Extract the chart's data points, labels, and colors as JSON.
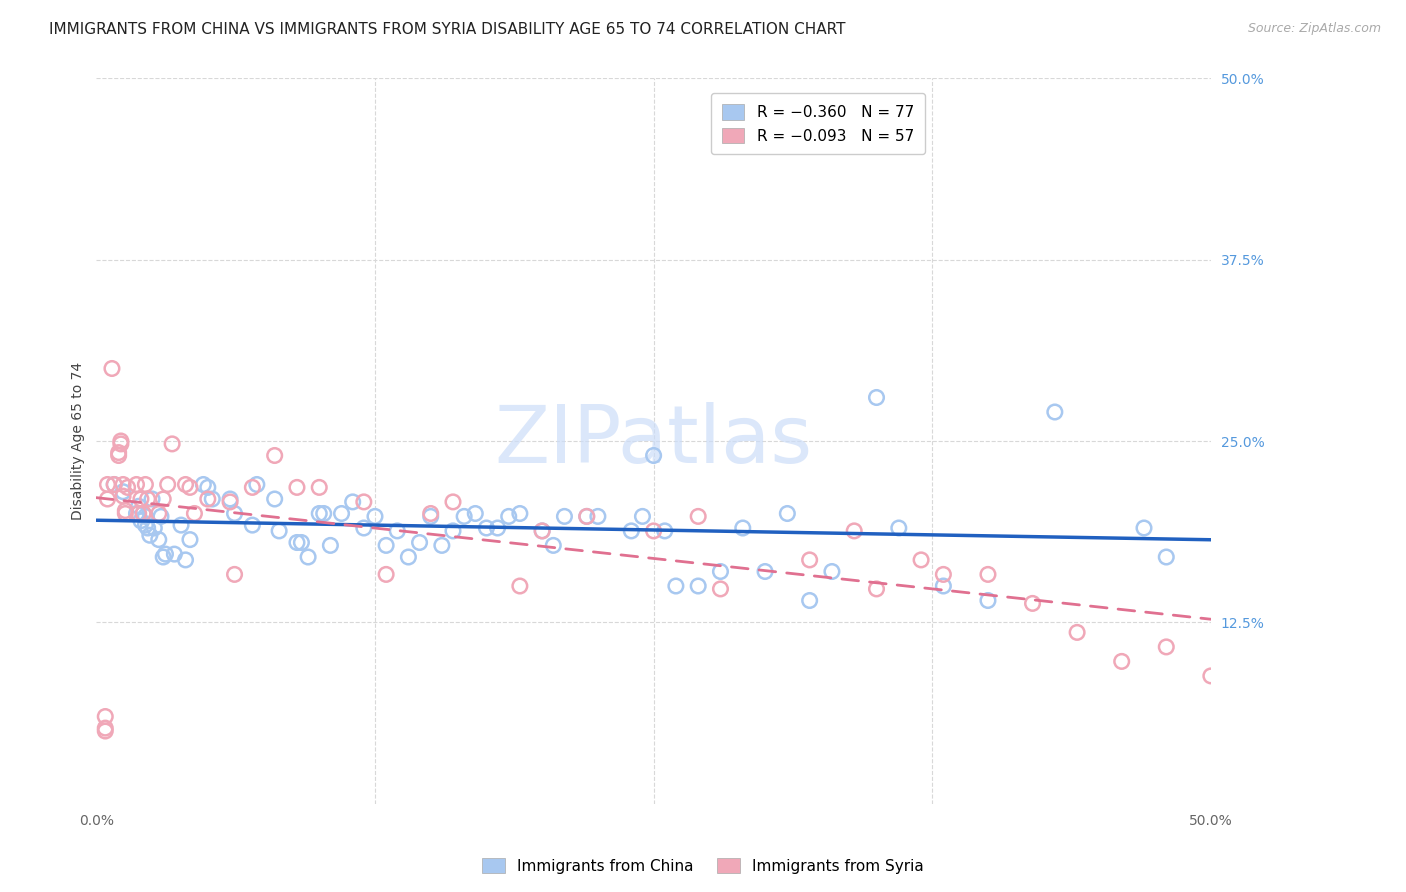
{
  "title": "IMMIGRANTS FROM CHINA VS IMMIGRANTS FROM SYRIA DISABILITY AGE 65 TO 74 CORRELATION CHART",
  "source": "Source: ZipAtlas.com",
  "ylabel": "Disability Age 65 to 74",
  "x_min": 0.0,
  "x_max": 0.5,
  "y_min": 0.0,
  "y_max": 0.5,
  "y_ticks_right": [
    0.5,
    0.375,
    0.25,
    0.125
  ],
  "y_tick_labels_right": [
    "50.0%",
    "37.5%",
    "25.0%",
    "12.5%"
  ],
  "legend_r_china": "R = −0.360",
  "legend_n_china": "N = 77",
  "legend_r_syria": "R = −0.093",
  "legend_n_syria": "N = 57",
  "color_china": "#a8c8f0",
  "color_syria": "#f0a8b8",
  "trendline_china_color": "#2060c0",
  "trendline_syria_color": "#e07090",
  "watermark_color": "#ccddf8",
  "background_color": "#ffffff",
  "grid_color": "#d8d8d8",
  "title_fontsize": 11,
  "axis_label_fontsize": 10,
  "tick_fontsize": 10,
  "legend_fontsize": 11,
  "china_x": [
    0.008,
    0.012,
    0.018,
    0.019,
    0.02,
    0.021,
    0.022,
    0.022,
    0.023,
    0.024,
    0.025,
    0.026,
    0.028,
    0.029,
    0.03,
    0.031,
    0.035,
    0.038,
    0.04,
    0.042,
    0.048,
    0.05,
    0.052,
    0.06,
    0.062,
    0.07,
    0.072,
    0.08,
    0.082,
    0.09,
    0.092,
    0.095,
    0.1,
    0.102,
    0.105,
    0.11,
    0.115,
    0.12,
    0.125,
    0.13,
    0.135,
    0.14,
    0.145,
    0.15,
    0.155,
    0.16,
    0.165,
    0.17,
    0.175,
    0.18,
    0.185,
    0.19,
    0.2,
    0.205,
    0.21,
    0.22,
    0.225,
    0.24,
    0.245,
    0.25,
    0.255,
    0.26,
    0.27,
    0.28,
    0.29,
    0.3,
    0.31,
    0.32,
    0.33,
    0.35,
    0.36,
    0.38,
    0.4,
    0.43,
    0.47,
    0.48
  ],
  "china_y": [
    0.22,
    0.215,
    0.2,
    0.205,
    0.195,
    0.2,
    0.198,
    0.192,
    0.19,
    0.185,
    0.21,
    0.19,
    0.182,
    0.198,
    0.17,
    0.172,
    0.172,
    0.192,
    0.168,
    0.182,
    0.22,
    0.218,
    0.21,
    0.21,
    0.2,
    0.192,
    0.22,
    0.21,
    0.188,
    0.18,
    0.18,
    0.17,
    0.2,
    0.2,
    0.178,
    0.2,
    0.208,
    0.19,
    0.198,
    0.178,
    0.188,
    0.17,
    0.18,
    0.198,
    0.178,
    0.188,
    0.198,
    0.2,
    0.19,
    0.19,
    0.198,
    0.2,
    0.188,
    0.178,
    0.198,
    0.198,
    0.198,
    0.188,
    0.198,
    0.24,
    0.188,
    0.15,
    0.15,
    0.16,
    0.19,
    0.16,
    0.2,
    0.14,
    0.16,
    0.28,
    0.19,
    0.15,
    0.14,
    0.27,
    0.19,
    0.17
  ],
  "syria_x": [
    0.004,
    0.004,
    0.004,
    0.005,
    0.005,
    0.007,
    0.008,
    0.01,
    0.01,
    0.011,
    0.011,
    0.012,
    0.012,
    0.013,
    0.013,
    0.014,
    0.018,
    0.019,
    0.02,
    0.021,
    0.022,
    0.023,
    0.028,
    0.03,
    0.032,
    0.034,
    0.04,
    0.042,
    0.044,
    0.05,
    0.06,
    0.062,
    0.07,
    0.08,
    0.09,
    0.1,
    0.12,
    0.13,
    0.15,
    0.16,
    0.19,
    0.2,
    0.22,
    0.25,
    0.27,
    0.28,
    0.32,
    0.34,
    0.35,
    0.37,
    0.38,
    0.4,
    0.42,
    0.44,
    0.46,
    0.48,
    0.5
  ],
  "syria_y": [
    0.05,
    0.052,
    0.06,
    0.21,
    0.22,
    0.3,
    0.22,
    0.24,
    0.242,
    0.248,
    0.25,
    0.22,
    0.212,
    0.2,
    0.202,
    0.218,
    0.22,
    0.2,
    0.21,
    0.2,
    0.22,
    0.21,
    0.2,
    0.21,
    0.22,
    0.248,
    0.22,
    0.218,
    0.2,
    0.21,
    0.208,
    0.158,
    0.218,
    0.24,
    0.218,
    0.218,
    0.208,
    0.158,
    0.2,
    0.208,
    0.15,
    0.188,
    0.198,
    0.188,
    0.198,
    0.148,
    0.168,
    0.188,
    0.148,
    0.168,
    0.158,
    0.158,
    0.138,
    0.118,
    0.098,
    0.108,
    0.088
  ]
}
